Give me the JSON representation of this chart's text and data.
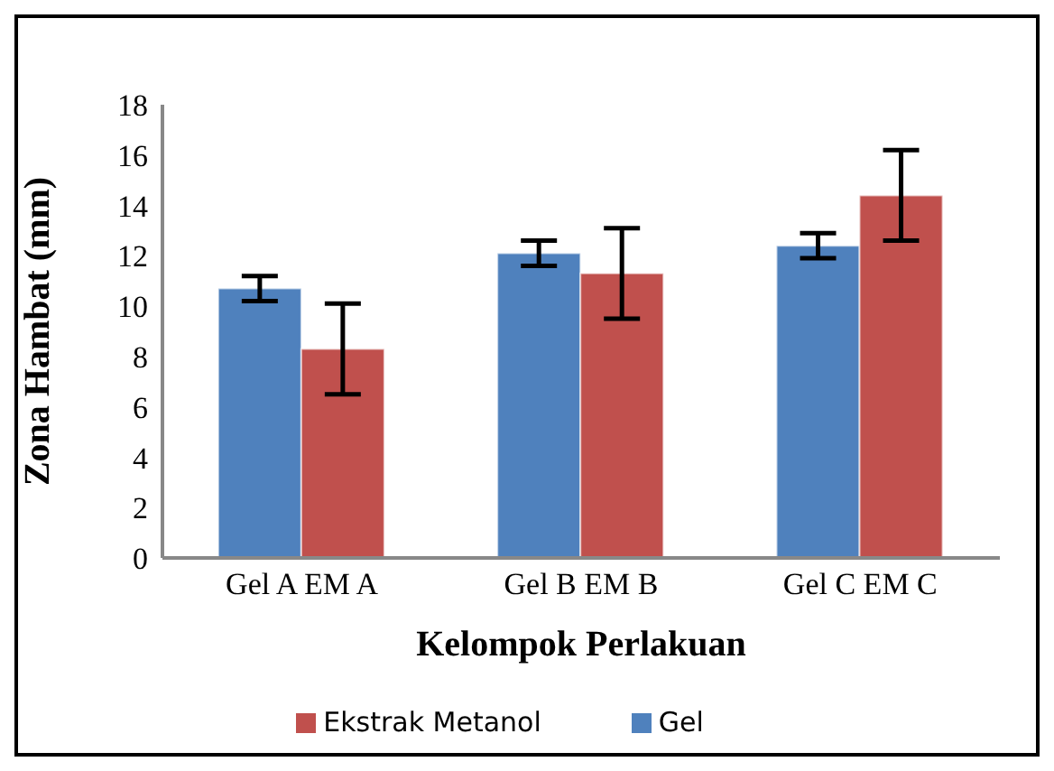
{
  "chart_data": {
    "type": "bar",
    "xlabel": "Kelompok Perlakuan",
    "ylabel": "Zona Hambat (mm)",
    "categories": [
      "Gel A EM A",
      "Gel B EM B",
      "Gel C EM C"
    ],
    "series": [
      {
        "name": "Gel",
        "color": "#4f81bd",
        "values": [
          10.7,
          12.1,
          12.4
        ],
        "errors": [
          0.5,
          0.5,
          0.5
        ]
      },
      {
        "name": "Ekstrak Metanol",
        "color": "#c0504d",
        "values": [
          8.3,
          11.3,
          14.4
        ],
        "errors": [
          1.8,
          1.8,
          1.8
        ]
      }
    ],
    "ylim": [
      0,
      18
    ],
    "yticks": [
      0,
      2,
      4,
      6,
      8,
      10,
      12,
      14,
      16,
      18
    ],
    "grid": false,
    "legend": "bottom"
  }
}
